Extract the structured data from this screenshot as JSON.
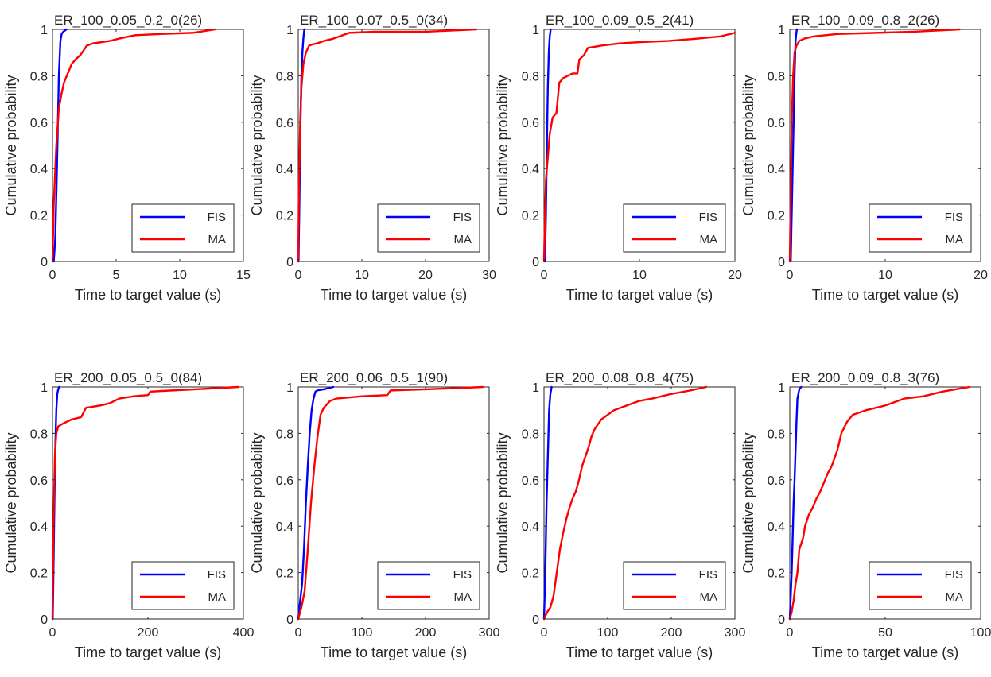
{
  "colors": {
    "FIS": "#0000ff",
    "MA": "#ff0000",
    "axes": "#262626"
  },
  "chart_data": [
    {
      "type": "line",
      "title": "ER_100_0.05_0.2_0(26)",
      "xlabel": "Time to target value (s)",
      "ylabel": "Cumulative probability",
      "xlim": [
        0,
        15
      ],
      "ylim": [
        0,
        1
      ],
      "xticks": [
        0,
        5,
        10,
        15
      ],
      "yticks": [
        0,
        0.2,
        0.4,
        0.6,
        0.8,
        1
      ],
      "legend": "lower-right",
      "series": [
        {
          "name": "FIS",
          "x": [
            0.1,
            0.22,
            0.35,
            0.5,
            0.62,
            0.72,
            0.85,
            1.1
          ],
          "y": [
            0,
            0.1,
            0.4,
            0.8,
            0.95,
            0.98,
            0.99,
            1.0
          ]
        },
        {
          "name": "MA",
          "x": [
            0,
            0.1,
            0.3,
            0.5,
            0.7,
            0.9,
            1.2,
            1.5,
            1.8,
            2.2,
            2.7,
            3.2,
            4.5,
            5.2,
            6.5,
            8.5,
            11.0,
            12.8
          ],
          "y": [
            0,
            0.25,
            0.5,
            0.66,
            0.72,
            0.77,
            0.81,
            0.85,
            0.87,
            0.89,
            0.93,
            0.94,
            0.95,
            0.96,
            0.975,
            0.98,
            0.985,
            1.0
          ]
        }
      ]
    },
    {
      "type": "line",
      "title": "ER_100_0.07_0.5_0(34)",
      "xlabel": "Time to target value (s)",
      "ylabel": "Cumulative probability",
      "xlim": [
        0,
        30
      ],
      "ylim": [
        0,
        1
      ],
      "xticks": [
        0,
        10,
        20,
        30
      ],
      "yticks": [
        0,
        0.2,
        0.4,
        0.6,
        0.8,
        1
      ],
      "legend": "lower-right",
      "series": [
        {
          "name": "FIS",
          "x": [
            0.05,
            0.2,
            0.35,
            0.5,
            0.65,
            0.8,
            0.95
          ],
          "y": [
            0,
            0.3,
            0.6,
            0.8,
            0.9,
            0.96,
            1.0
          ]
        },
        {
          "name": "MA",
          "x": [
            0,
            0.1,
            0.3,
            0.5,
            0.8,
            1.2,
            1.7,
            2.2,
            3.0,
            4.0,
            5.5,
            8.0,
            12.0,
            20.0,
            28.0
          ],
          "y": [
            0,
            0.3,
            0.6,
            0.75,
            0.85,
            0.9,
            0.93,
            0.935,
            0.94,
            0.95,
            0.96,
            0.985,
            0.99,
            0.99,
            1.0
          ]
        }
      ]
    },
    {
      "type": "line",
      "title": "ER_100_0.09_0.5_2(41)",
      "xlabel": "Time to target value (s)",
      "ylabel": "Cumulative probability",
      "xlim": [
        0,
        20
      ],
      "ylim": [
        0,
        1
      ],
      "xticks": [
        0,
        10,
        20
      ],
      "yticks": [
        0,
        0.2,
        0.4,
        0.6,
        0.8,
        1
      ],
      "legend": "lower-right",
      "series": [
        {
          "name": "FIS",
          "x": [
            0.1,
            0.2,
            0.3,
            0.4,
            0.5,
            0.6,
            0.7
          ],
          "y": [
            0,
            0.2,
            0.5,
            0.75,
            0.9,
            0.97,
            1.0
          ]
        },
        {
          "name": "MA",
          "x": [
            0,
            0.1,
            0.2,
            0.4,
            0.6,
            0.9,
            1.3,
            1.6,
            2.0,
            2.5,
            3.0,
            3.5,
            3.7,
            4.2,
            4.6,
            6.0,
            8.0,
            10.0,
            13.0,
            16.0,
            18.5,
            20.0
          ],
          "y": [
            0,
            0.2,
            0.35,
            0.45,
            0.55,
            0.62,
            0.64,
            0.77,
            0.79,
            0.8,
            0.81,
            0.81,
            0.87,
            0.89,
            0.92,
            0.93,
            0.94,
            0.945,
            0.95,
            0.96,
            0.97,
            0.985
          ]
        }
      ]
    },
    {
      "type": "line",
      "title": "ER_100_0.09_0.8_2(26)",
      "xlabel": "Time to target value (s)",
      "ylabel": "Cumulative probability",
      "xlim": [
        0,
        20
      ],
      "ylim": [
        0,
        1
      ],
      "xticks": [
        0,
        10,
        20
      ],
      "yticks": [
        0,
        0.2,
        0.4,
        0.6,
        0.8,
        1
      ],
      "legend": "lower-right",
      "series": [
        {
          "name": "FIS",
          "x": [
            0.1,
            0.2,
            0.35,
            0.5,
            0.6,
            0.7,
            0.75
          ],
          "y": [
            0,
            0.2,
            0.5,
            0.8,
            0.95,
            0.99,
            1.0
          ]
        },
        {
          "name": "MA",
          "x": [
            0,
            0.1,
            0.2,
            0.35,
            0.5,
            0.7,
            1.0,
            1.5,
            2.5,
            5.0,
            9.0,
            13.0,
            17.8
          ],
          "y": [
            0,
            0.3,
            0.6,
            0.8,
            0.9,
            0.93,
            0.95,
            0.96,
            0.97,
            0.98,
            0.985,
            0.99,
            1.0
          ]
        }
      ]
    },
    {
      "type": "line",
      "title": "ER_200_0.05_0.5_0(84)",
      "xlabel": "Time to target value (s)",
      "ylabel": "Cumulative probability",
      "xlim": [
        0,
        400
      ],
      "ylim": [
        0,
        1
      ],
      "xticks": [
        0,
        200,
        400
      ],
      "yticks": [
        0,
        0.2,
        0.4,
        0.6,
        0.8,
        1
      ],
      "legend": "lower-right",
      "series": [
        {
          "name": "FIS",
          "x": [
            0.5,
            2,
            4,
            6,
            8,
            10,
            12,
            14
          ],
          "y": [
            0,
            0.2,
            0.5,
            0.75,
            0.9,
            0.97,
            0.99,
            1.0
          ]
        },
        {
          "name": "MA",
          "x": [
            0,
            2,
            5,
            8,
            12,
            20,
            40,
            60,
            70,
            100,
            120,
            140,
            170,
            200,
            205,
            250,
            300,
            390
          ],
          "y": [
            0,
            0.4,
            0.7,
            0.8,
            0.83,
            0.84,
            0.86,
            0.87,
            0.91,
            0.92,
            0.93,
            0.95,
            0.96,
            0.965,
            0.98,
            0.985,
            0.99,
            1.0
          ]
        }
      ]
    },
    {
      "type": "line",
      "title": "ER_200_0.06_0.5_1(90)",
      "xlabel": "Time to target value (s)",
      "ylabel": "Cumulative probability",
      "xlim": [
        0,
        300
      ],
      "ylim": [
        0,
        1
      ],
      "xticks": [
        0,
        100,
        200,
        300
      ],
      "yticks": [
        0,
        0.2,
        0.4,
        0.6,
        0.8,
        1
      ],
      "legend": "lower-right",
      "series": [
        {
          "name": "FIS",
          "x": [
            0,
            3,
            6,
            9,
            12,
            15,
            18,
            21,
            24,
            27,
            30,
            40,
            55
          ],
          "y": [
            0,
            0.08,
            0.15,
            0.3,
            0.5,
            0.66,
            0.8,
            0.9,
            0.95,
            0.98,
            0.985,
            0.99,
            1.0
          ]
        },
        {
          "name": "MA",
          "x": [
            0,
            5,
            10,
            15,
            20,
            25,
            30,
            35,
            40,
            50,
            60,
            80,
            100,
            140,
            145,
            200,
            250,
            290
          ],
          "y": [
            0,
            0.05,
            0.12,
            0.3,
            0.5,
            0.65,
            0.78,
            0.88,
            0.91,
            0.94,
            0.95,
            0.955,
            0.96,
            0.965,
            0.985,
            0.99,
            0.995,
            1.0
          ]
        }
      ]
    },
    {
      "type": "line",
      "title": "ER_200_0.08_0.8_4(75)",
      "xlabel": "Time to target value (s)",
      "ylabel": "Cumulative probability",
      "xlim": [
        0,
        300
      ],
      "ylim": [
        0,
        1
      ],
      "xticks": [
        0,
        100,
        200,
        300
      ],
      "yticks": [
        0,
        0.2,
        0.4,
        0.6,
        0.8,
        1
      ],
      "legend": "lower-right",
      "series": [
        {
          "name": "FIS",
          "x": [
            0,
            2,
            4,
            6,
            8,
            10,
            12
          ],
          "y": [
            0,
            0.2,
            0.5,
            0.7,
            0.9,
            0.97,
            1.0
          ]
        },
        {
          "name": "MA",
          "x": [
            0,
            5,
            10,
            15,
            20,
            25,
            30,
            35,
            40,
            45,
            50,
            55,
            60,
            65,
            70,
            75,
            80,
            90,
            100,
            110,
            120,
            130,
            150,
            170,
            200,
            230,
            255
          ],
          "y": [
            0,
            0.03,
            0.05,
            0.1,
            0.2,
            0.3,
            0.37,
            0.43,
            0.48,
            0.52,
            0.55,
            0.6,
            0.66,
            0.7,
            0.74,
            0.79,
            0.82,
            0.86,
            0.88,
            0.9,
            0.91,
            0.92,
            0.94,
            0.95,
            0.97,
            0.985,
            1.0
          ]
        }
      ]
    },
    {
      "type": "line",
      "title": "ER_200_0.09_0.8_3(76)",
      "xlabel": "Time to target value (s)",
      "ylabel": "Cumulative probability",
      "xlim": [
        0,
        100
      ],
      "ylim": [
        0,
        1
      ],
      "xticks": [
        0,
        50,
        100
      ],
      "yticks": [
        0,
        0.2,
        0.4,
        0.6,
        0.8,
        1
      ],
      "legend": "lower-right",
      "series": [
        {
          "name": "FIS",
          "x": [
            0,
            0.5,
            1,
            1.5,
            2,
            2.5,
            3,
            3.5,
            4,
            5,
            6
          ],
          "y": [
            0,
            0.1,
            0.2,
            0.35,
            0.5,
            0.6,
            0.72,
            0.85,
            0.95,
            0.99,
            1.0
          ]
        },
        {
          "name": "MA",
          "x": [
            0,
            1,
            2,
            3,
            4,
            5,
            7,
            8,
            10,
            12,
            14,
            16,
            18,
            20,
            22,
            25,
            27,
            30,
            33,
            40,
            50,
            60,
            70,
            80,
            94
          ],
          "y": [
            0,
            0.03,
            0.08,
            0.15,
            0.2,
            0.3,
            0.35,
            0.4,
            0.45,
            0.48,
            0.52,
            0.55,
            0.59,
            0.63,
            0.66,
            0.73,
            0.8,
            0.85,
            0.88,
            0.9,
            0.92,
            0.95,
            0.96,
            0.98,
            1.0
          ]
        }
      ]
    }
  ]
}
